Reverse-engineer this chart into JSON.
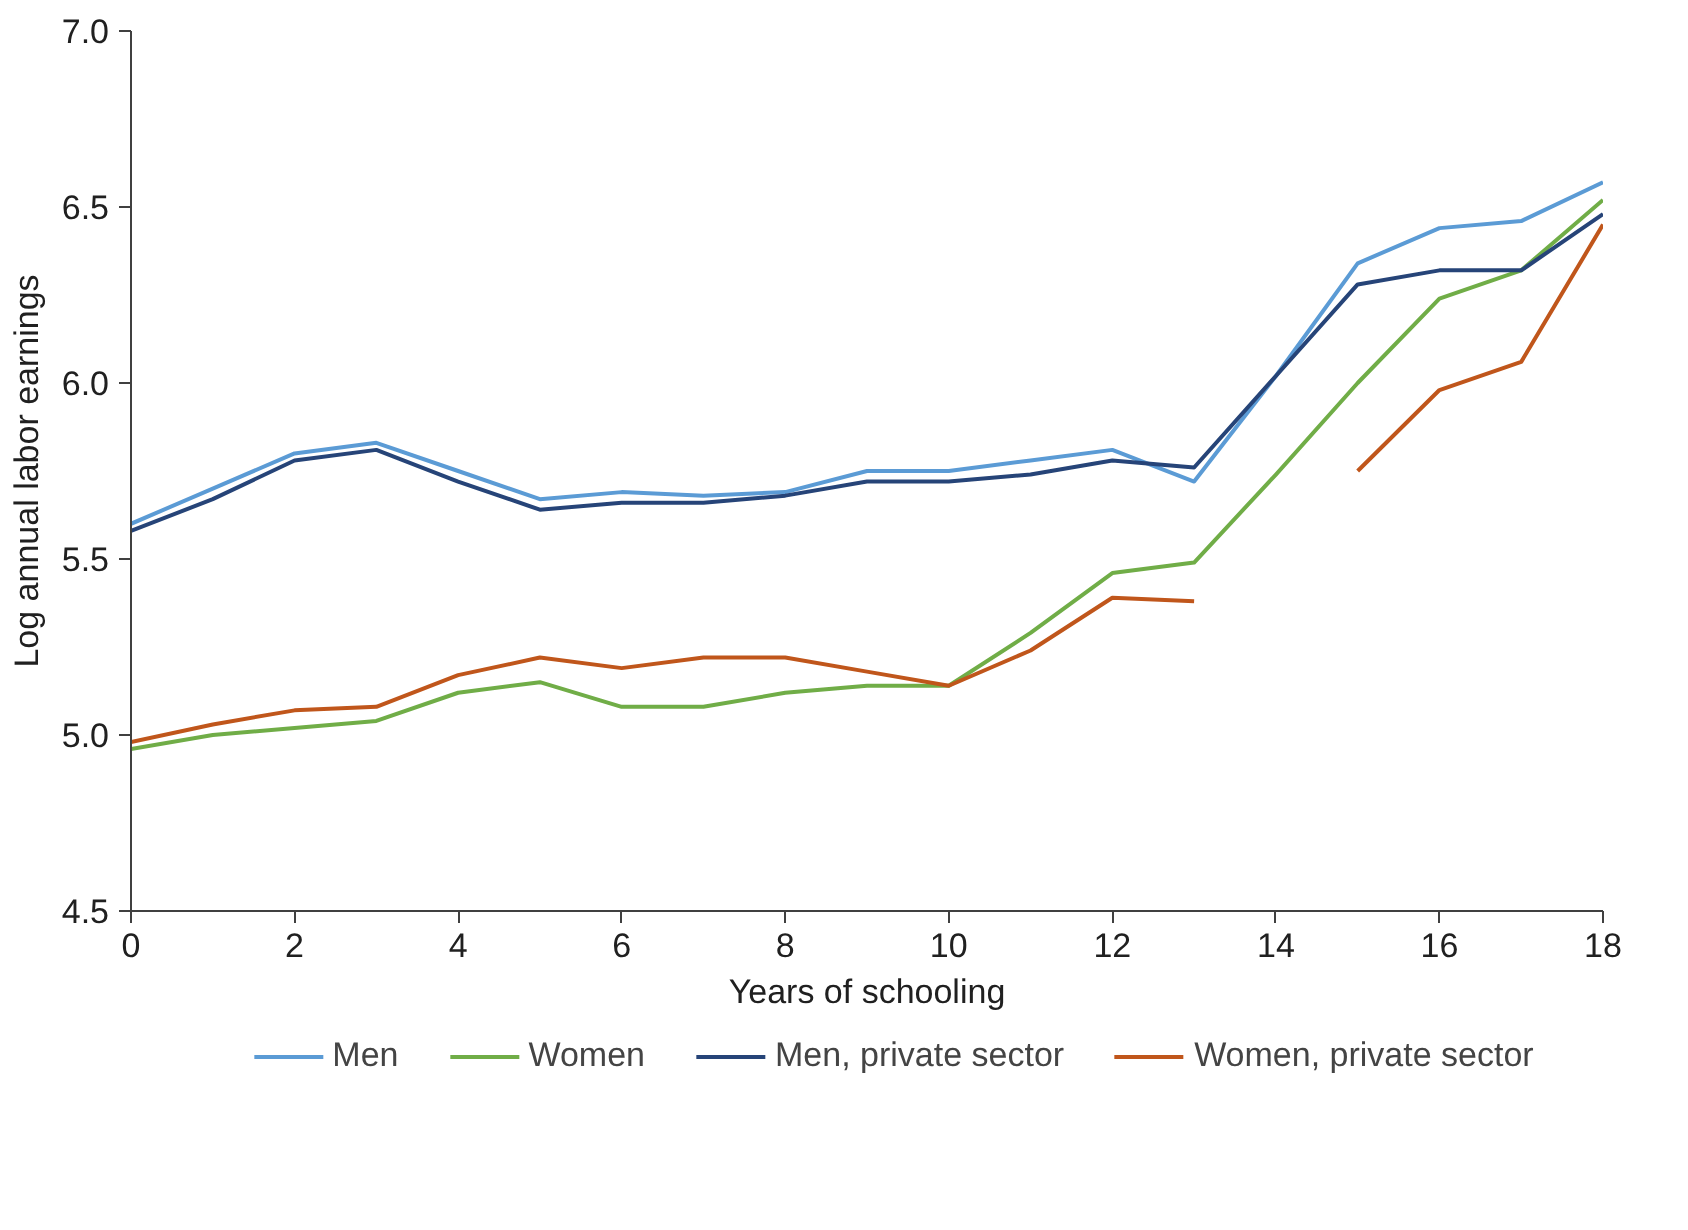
{
  "chart_data": {
    "type": "line",
    "xlabel": "Years of schooling",
    "ylabel": "Log annual labor earnings",
    "x": [
      0,
      1,
      2,
      3,
      4,
      5,
      6,
      7,
      8,
      9,
      10,
      11,
      12,
      13,
      14,
      15,
      16,
      17,
      18
    ],
    "xlim": [
      0,
      18
    ],
    "xticks": [
      0,
      2,
      4,
      6,
      8,
      10,
      12,
      14,
      16,
      18
    ],
    "ylim": [
      4.5,
      7.0
    ],
    "yticks": [
      {
        "value": 4.5,
        "label": "4.5"
      },
      {
        "value": 5.0,
        "label": "5.0"
      },
      {
        "value": 5.5,
        "label": "5.5"
      },
      {
        "value": 6.0,
        "label": "6.0"
      },
      {
        "value": 6.5,
        "label": "6.5"
      },
      {
        "value": 7.0,
        "label": "7.0"
      }
    ],
    "grid": false,
    "legend": "bottom",
    "marker": "none",
    "line_style": "solid",
    "series": [
      {
        "name": "Men",
        "color": "#5b9bd5",
        "values": [
          5.6,
          5.7,
          5.8,
          5.83,
          5.75,
          5.67,
          5.69,
          5.68,
          5.69,
          5.75,
          5.75,
          5.78,
          5.81,
          5.72,
          6.02,
          6.34,
          6.44,
          6.46,
          6.57
        ]
      },
      {
        "name": "Women",
        "color": "#70ad47",
        "values": [
          4.96,
          5.0,
          5.02,
          5.04,
          5.12,
          5.15,
          5.08,
          5.08,
          5.12,
          5.14,
          5.14,
          5.29,
          5.46,
          5.49,
          5.74,
          6.0,
          6.24,
          6.32,
          6.52
        ]
      },
      {
        "name": "Men, private sector",
        "color": "#264478",
        "values": [
          5.58,
          5.67,
          5.78,
          5.81,
          5.72,
          5.64,
          5.66,
          5.66,
          5.68,
          5.72,
          5.72,
          5.74,
          5.78,
          5.76,
          6.02,
          6.28,
          6.32,
          6.32,
          6.48
        ]
      },
      {
        "name": "Women, private sector",
        "color": "#c0561b",
        "values": [
          4.98,
          5.03,
          5.07,
          5.08,
          5.17,
          5.22,
          5.19,
          5.22,
          5.22,
          5.18,
          5.14,
          5.24,
          5.39,
          5.38,
          null,
          5.75,
          5.98,
          6.06,
          6.45
        ]
      }
    ]
  }
}
